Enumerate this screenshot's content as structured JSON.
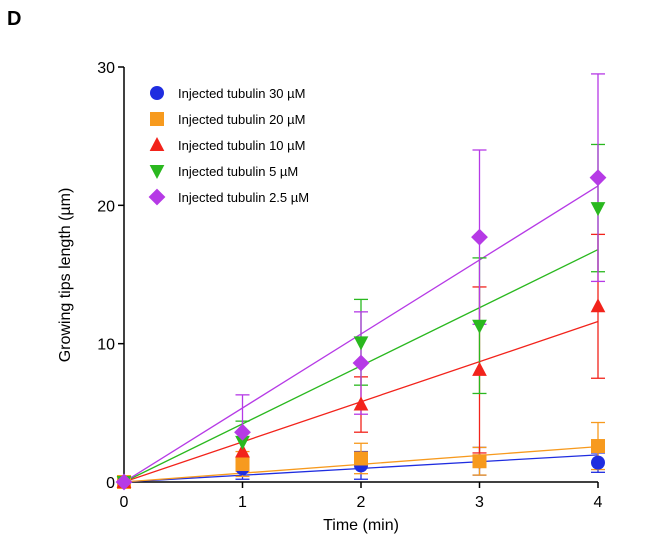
{
  "panel_label": "D",
  "chart_data": {
    "type": "scatter",
    "xlabel": "Time (min)",
    "ylabel": "Growing tips length (µm)",
    "xlim": [
      0,
      4
    ],
    "ylim": [
      0,
      30
    ],
    "x_ticks": [
      0,
      1,
      2,
      3,
      4
    ],
    "y_ticks": [
      0,
      10,
      20,
      30
    ],
    "grid": false,
    "legend_position": "top-left",
    "fit_lines": "linear regression through origin",
    "series": [
      {
        "name": "Injected tubulin 30 µM",
        "color": "#1f2de0",
        "marker": "circle",
        "x": [
          0,
          1,
          2,
          3,
          4
        ],
        "y": [
          0,
          1.0,
          1.2,
          1.5,
          1.4
        ],
        "err": [
          0,
          0.8,
          1.0,
          1.0,
          0.7
        ],
        "slope": 0.49
      },
      {
        "name": "Injected tubulin 20 µM",
        "color": "#f79a1e",
        "marker": "square",
        "x": [
          0,
          1,
          2,
          3,
          4
        ],
        "y": [
          0,
          1.3,
          1.7,
          1.5,
          2.6
        ],
        "err": [
          0,
          0.9,
          1.1,
          1.0,
          1.7
        ],
        "slope": 0.64
      },
      {
        "name": "Injected tubulin 10 µM",
        "color": "#f2231b",
        "marker": "triangle-up",
        "x": [
          0,
          1,
          2,
          3,
          4
        ],
        "y": [
          0,
          2.2,
          5.6,
          8.1,
          12.7
        ],
        "err": [
          0,
          1.4,
          2.0,
          6.0,
          5.2
        ],
        "slope": 2.9
      },
      {
        "name": "Injected tubulin 5 µM",
        "color": "#2ab81f",
        "marker": "triangle-down",
        "x": [
          0,
          1,
          2,
          3,
          4
        ],
        "y": [
          0,
          2.9,
          10.1,
          11.3,
          19.8
        ],
        "err": [
          0,
          1.5,
          3.1,
          4.9,
          4.6
        ],
        "slope": 4.2
      },
      {
        "name": "Injected tubulin 2.5 µM",
        "color": "#b63ae6",
        "marker": "diamond",
        "x": [
          0,
          1,
          2,
          3,
          4
        ],
        "y": [
          0,
          3.6,
          8.6,
          17.7,
          22.0
        ],
        "err": [
          0,
          2.7,
          3.7,
          6.3,
          7.5
        ],
        "slope": 5.35
      }
    ]
  }
}
